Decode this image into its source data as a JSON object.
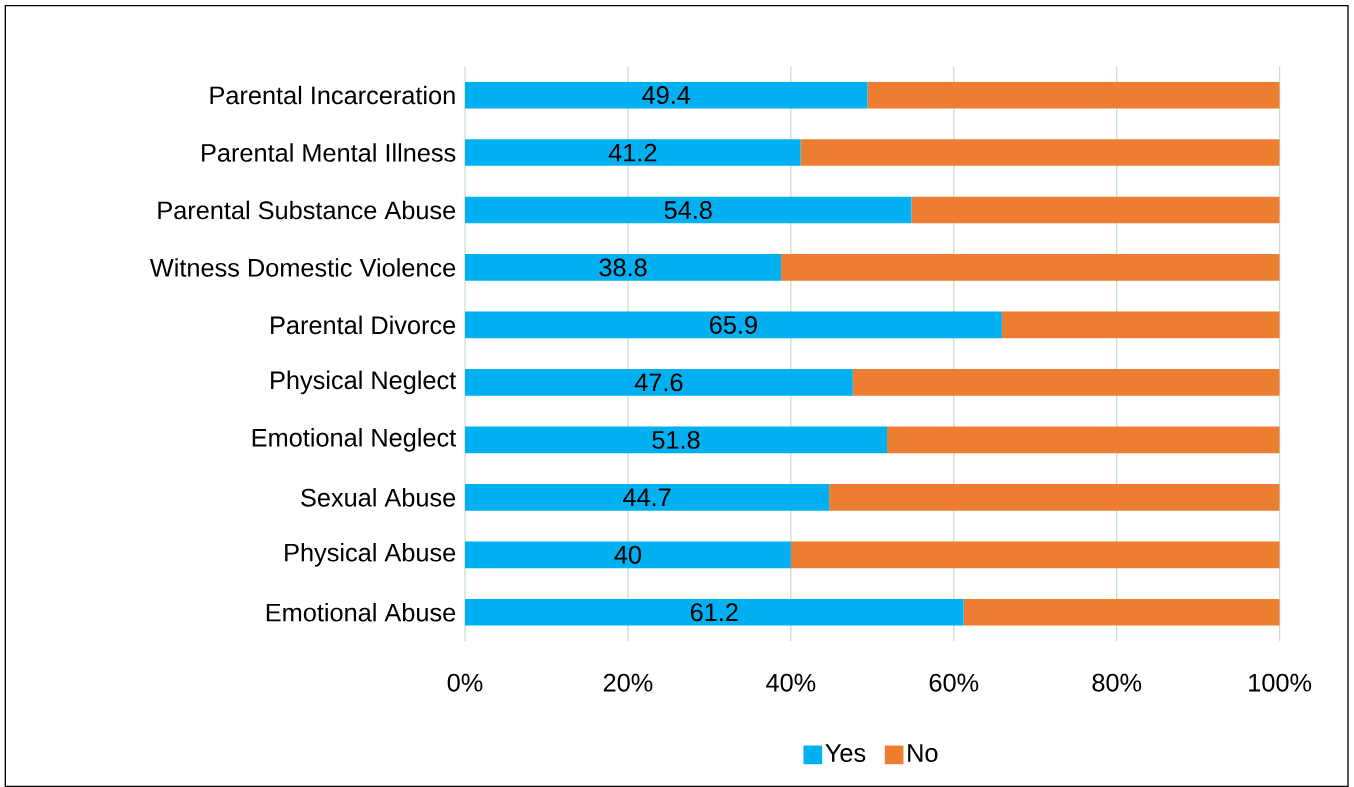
{
  "chart_data": {
    "type": "bar",
    "orientation": "horizontal",
    "stacked": true,
    "categories": [
      "Parental Incarceration",
      "Parental Mental Illness",
      "Parental Substance Abuse",
      "Witness Domestic Violence",
      "Parental Divorce",
      "Physical Neglect",
      "Emotional Neglect",
      "Sexual Abuse",
      "Physical Abuse",
      "Emotional Abuse"
    ],
    "series": [
      {
        "name": "Yes",
        "color": "#00b0f0",
        "values": [
          49.4,
          41.2,
          54.8,
          38.8,
          65.9,
          47.6,
          51.8,
          44.7,
          40,
          61.2
        ],
        "value_labels": [
          "49.4",
          "41.2",
          "54.8",
          "38.8",
          "65.9",
          "47.6",
          "51.8",
          "44.7",
          "40",
          "61.2"
        ]
      },
      {
        "name": "No",
        "color": "#ed7d31",
        "values": [
          50.6,
          58.8,
          45.2,
          61.2,
          34.1,
          52.4,
          48.2,
          55.3,
          60,
          38.8
        ]
      }
    ],
    "xlim": [
      0,
      100
    ],
    "xticks": [
      {
        "value": 0,
        "label": "0%"
      },
      {
        "value": 20,
        "label": "20%"
      },
      {
        "value": 40,
        "label": "40%"
      },
      {
        "value": 60,
        "label": "60%"
      },
      {
        "value": 80,
        "label": "80%"
      },
      {
        "value": 100,
        "label": "100%"
      }
    ],
    "grid": "x",
    "legend": "bottom"
  }
}
